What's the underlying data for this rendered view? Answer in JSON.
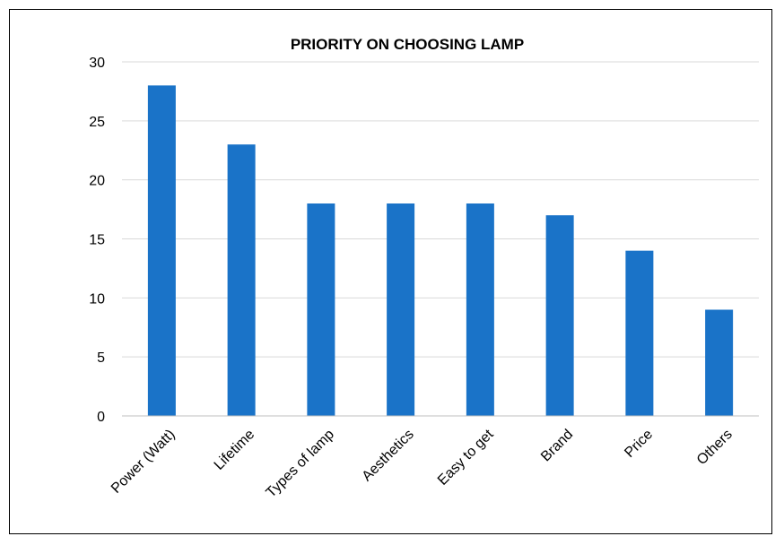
{
  "chart_data": {
    "type": "bar",
    "title": "PRIORITY ON CHOOSING LAMP",
    "categories": [
      "Power (Watt)",
      "Lifetime",
      "Types of lamp",
      "Aesthetics",
      "Easy to get",
      "Brand",
      "Price",
      "Others"
    ],
    "values": [
      28,
      23,
      18,
      18,
      18,
      17,
      14,
      9
    ],
    "ylim": [
      0,
      30
    ],
    "yticks": [
      "0",
      "5",
      "10",
      "15",
      "20",
      "25",
      "30"
    ],
    "xlabel": "",
    "ylabel": "",
    "grid": true,
    "legend": "none",
    "bar_color": "#1A73C8",
    "grid_color": "#D9D9D9",
    "axis_color": "#BFBFBF"
  }
}
